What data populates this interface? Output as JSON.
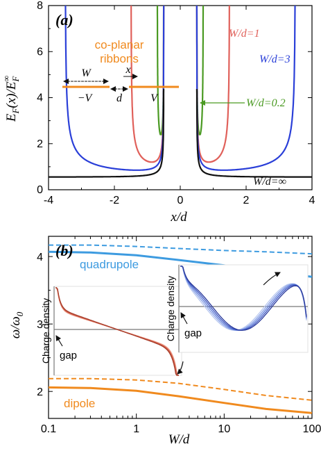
{
  "colors": {
    "black": "#111111",
    "blue": "#2a3fd8",
    "red": "#e0605a",
    "green": "#4a9a22",
    "orange": "#f08a1e",
    "lightblue": "#3d9be0",
    "gray": "#777777"
  },
  "chart_data": [
    {
      "type": "line",
      "panel_label": "(a)",
      "xlabel": "x/d",
      "ylabel": "E_F(x)/E_F^∞",
      "xlim": [
        -4,
        4
      ],
      "ylim": [
        0,
        8
      ],
      "xticks": [
        "-4",
        "-2",
        "0",
        "2",
        "4"
      ],
      "yticks": [
        "0",
        "2",
        "4",
        "6",
        "8"
      ],
      "series": [
        {
          "name": "W/d=0.2",
          "color_key": "green",
          "edge_inner": 0.5,
          "edge_outer": 0.7,
          "min": 2.4
        },
        {
          "name": "W/d=1",
          "color_key": "red",
          "edge_inner": 0.5,
          "edge_outer": 1.5,
          "min": 1.2
        },
        {
          "name": "W/d=3",
          "color_key": "blue",
          "edge_inner": 0.5,
          "edge_outer": 3.5,
          "min": 0.85
        },
        {
          "name": "W/d=∞",
          "color_key": "black",
          "edge_inner": 0.5,
          "edge_outer": null,
          "min": 0.55
        }
      ],
      "annotations": {
        "legend_title_line1": "co-planar",
        "legend_title_line2": "ribbons",
        "w_label": "W",
        "x_label": "x",
        "d_label": "d",
        "minus_v_label": "−V",
        "v_label": "V"
      }
    },
    {
      "type": "line",
      "panel_label": "(b)",
      "xlabel": "W/d",
      "ylabel": "ω/ω0",
      "xscale": "log",
      "xlim": [
        0.1,
        100
      ],
      "ylim": [
        1.6,
        4.3
      ],
      "xticks": [
        "0.1",
        "1",
        "10",
        "100"
      ],
      "yticks": [
        "2",
        "3",
        "4"
      ],
      "series": [
        {
          "name": "quadrupole",
          "style": "solid",
          "color_key": "lightblue",
          "x": [
            0.1,
            0.3,
            1,
            3,
            10,
            30,
            100
          ],
          "y": [
            4.07,
            4.06,
            4.02,
            3.95,
            3.87,
            3.78,
            3.7
          ]
        },
        {
          "name": "quadrupole-dashed",
          "style": "dashed",
          "color_key": "lightblue",
          "x": [
            0.1,
            0.3,
            1,
            3,
            10,
            30,
            100
          ],
          "y": [
            4.17,
            4.17,
            4.15,
            4.12,
            4.09,
            4.07,
            4.04
          ]
        },
        {
          "name": "dipole",
          "style": "solid",
          "color_key": "orange",
          "x": [
            0.1,
            0.3,
            1,
            3,
            10,
            30,
            100
          ],
          "y": [
            2.06,
            2.05,
            2.01,
            1.93,
            1.83,
            1.74,
            1.68
          ]
        },
        {
          "name": "dipole-dashed",
          "style": "dashed",
          "color_key": "orange",
          "x": [
            0.1,
            0.3,
            1,
            3,
            10,
            30,
            100
          ],
          "y": [
            2.19,
            2.19,
            2.17,
            2.12,
            2.03,
            1.94,
            1.87
          ]
        }
      ],
      "annotations": {
        "quadrupole_label": "quadrupole",
        "dipole_label": "dipole",
        "inset_ylabel": "Charge density",
        "gap_label": "gap"
      }
    }
  ]
}
